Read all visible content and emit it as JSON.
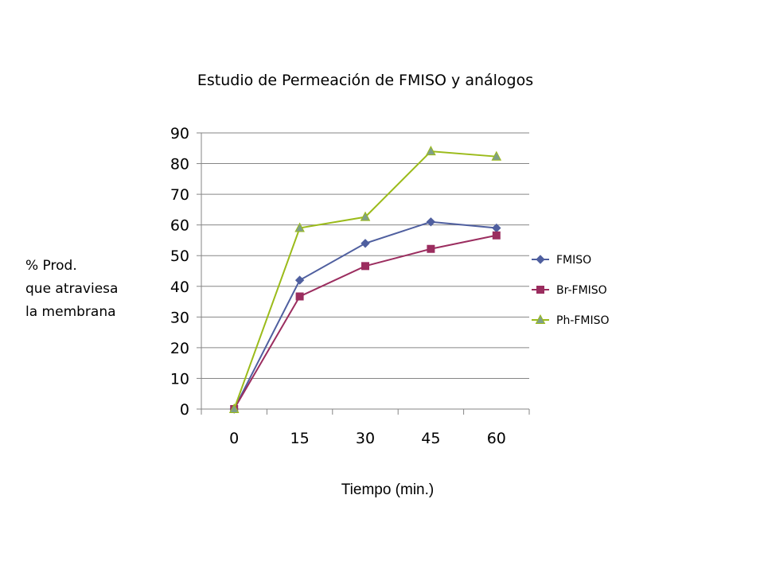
{
  "chart_data": {
    "type": "line",
    "title": "Estudio de Permeación de FMISO y análogos",
    "xlabel": "Tiempo (min.)",
    "ylabel_lines": [
      "% Prod.",
      "que atraviesa",
      "la membrana"
    ],
    "categories": [
      "0",
      "15",
      "30",
      "45",
      "60"
    ],
    "ylim": [
      0,
      90
    ],
    "yticks": [
      0,
      10,
      20,
      30,
      40,
      50,
      60,
      70,
      80,
      90
    ],
    "grid": "horizontal",
    "legend_position": "right",
    "series": [
      {
        "name": "FMISO",
        "values": [
          0,
          42,
          54,
          61,
          59
        ],
        "color": "#4F5F9F",
        "marker": "diamond"
      },
      {
        "name": "Br-FMISO",
        "values": [
          0,
          36.7,
          46.6,
          52.2,
          56.6
        ],
        "color": "#9B2D5F",
        "marker": "square"
      },
      {
        "name": "Ph-FMISO",
        "values": [
          0,
          59,
          62.6,
          84,
          82.3
        ],
        "color": "#9BBB1A",
        "marker": "triangle",
        "marker_fill": "#7F9F88"
      }
    ]
  }
}
